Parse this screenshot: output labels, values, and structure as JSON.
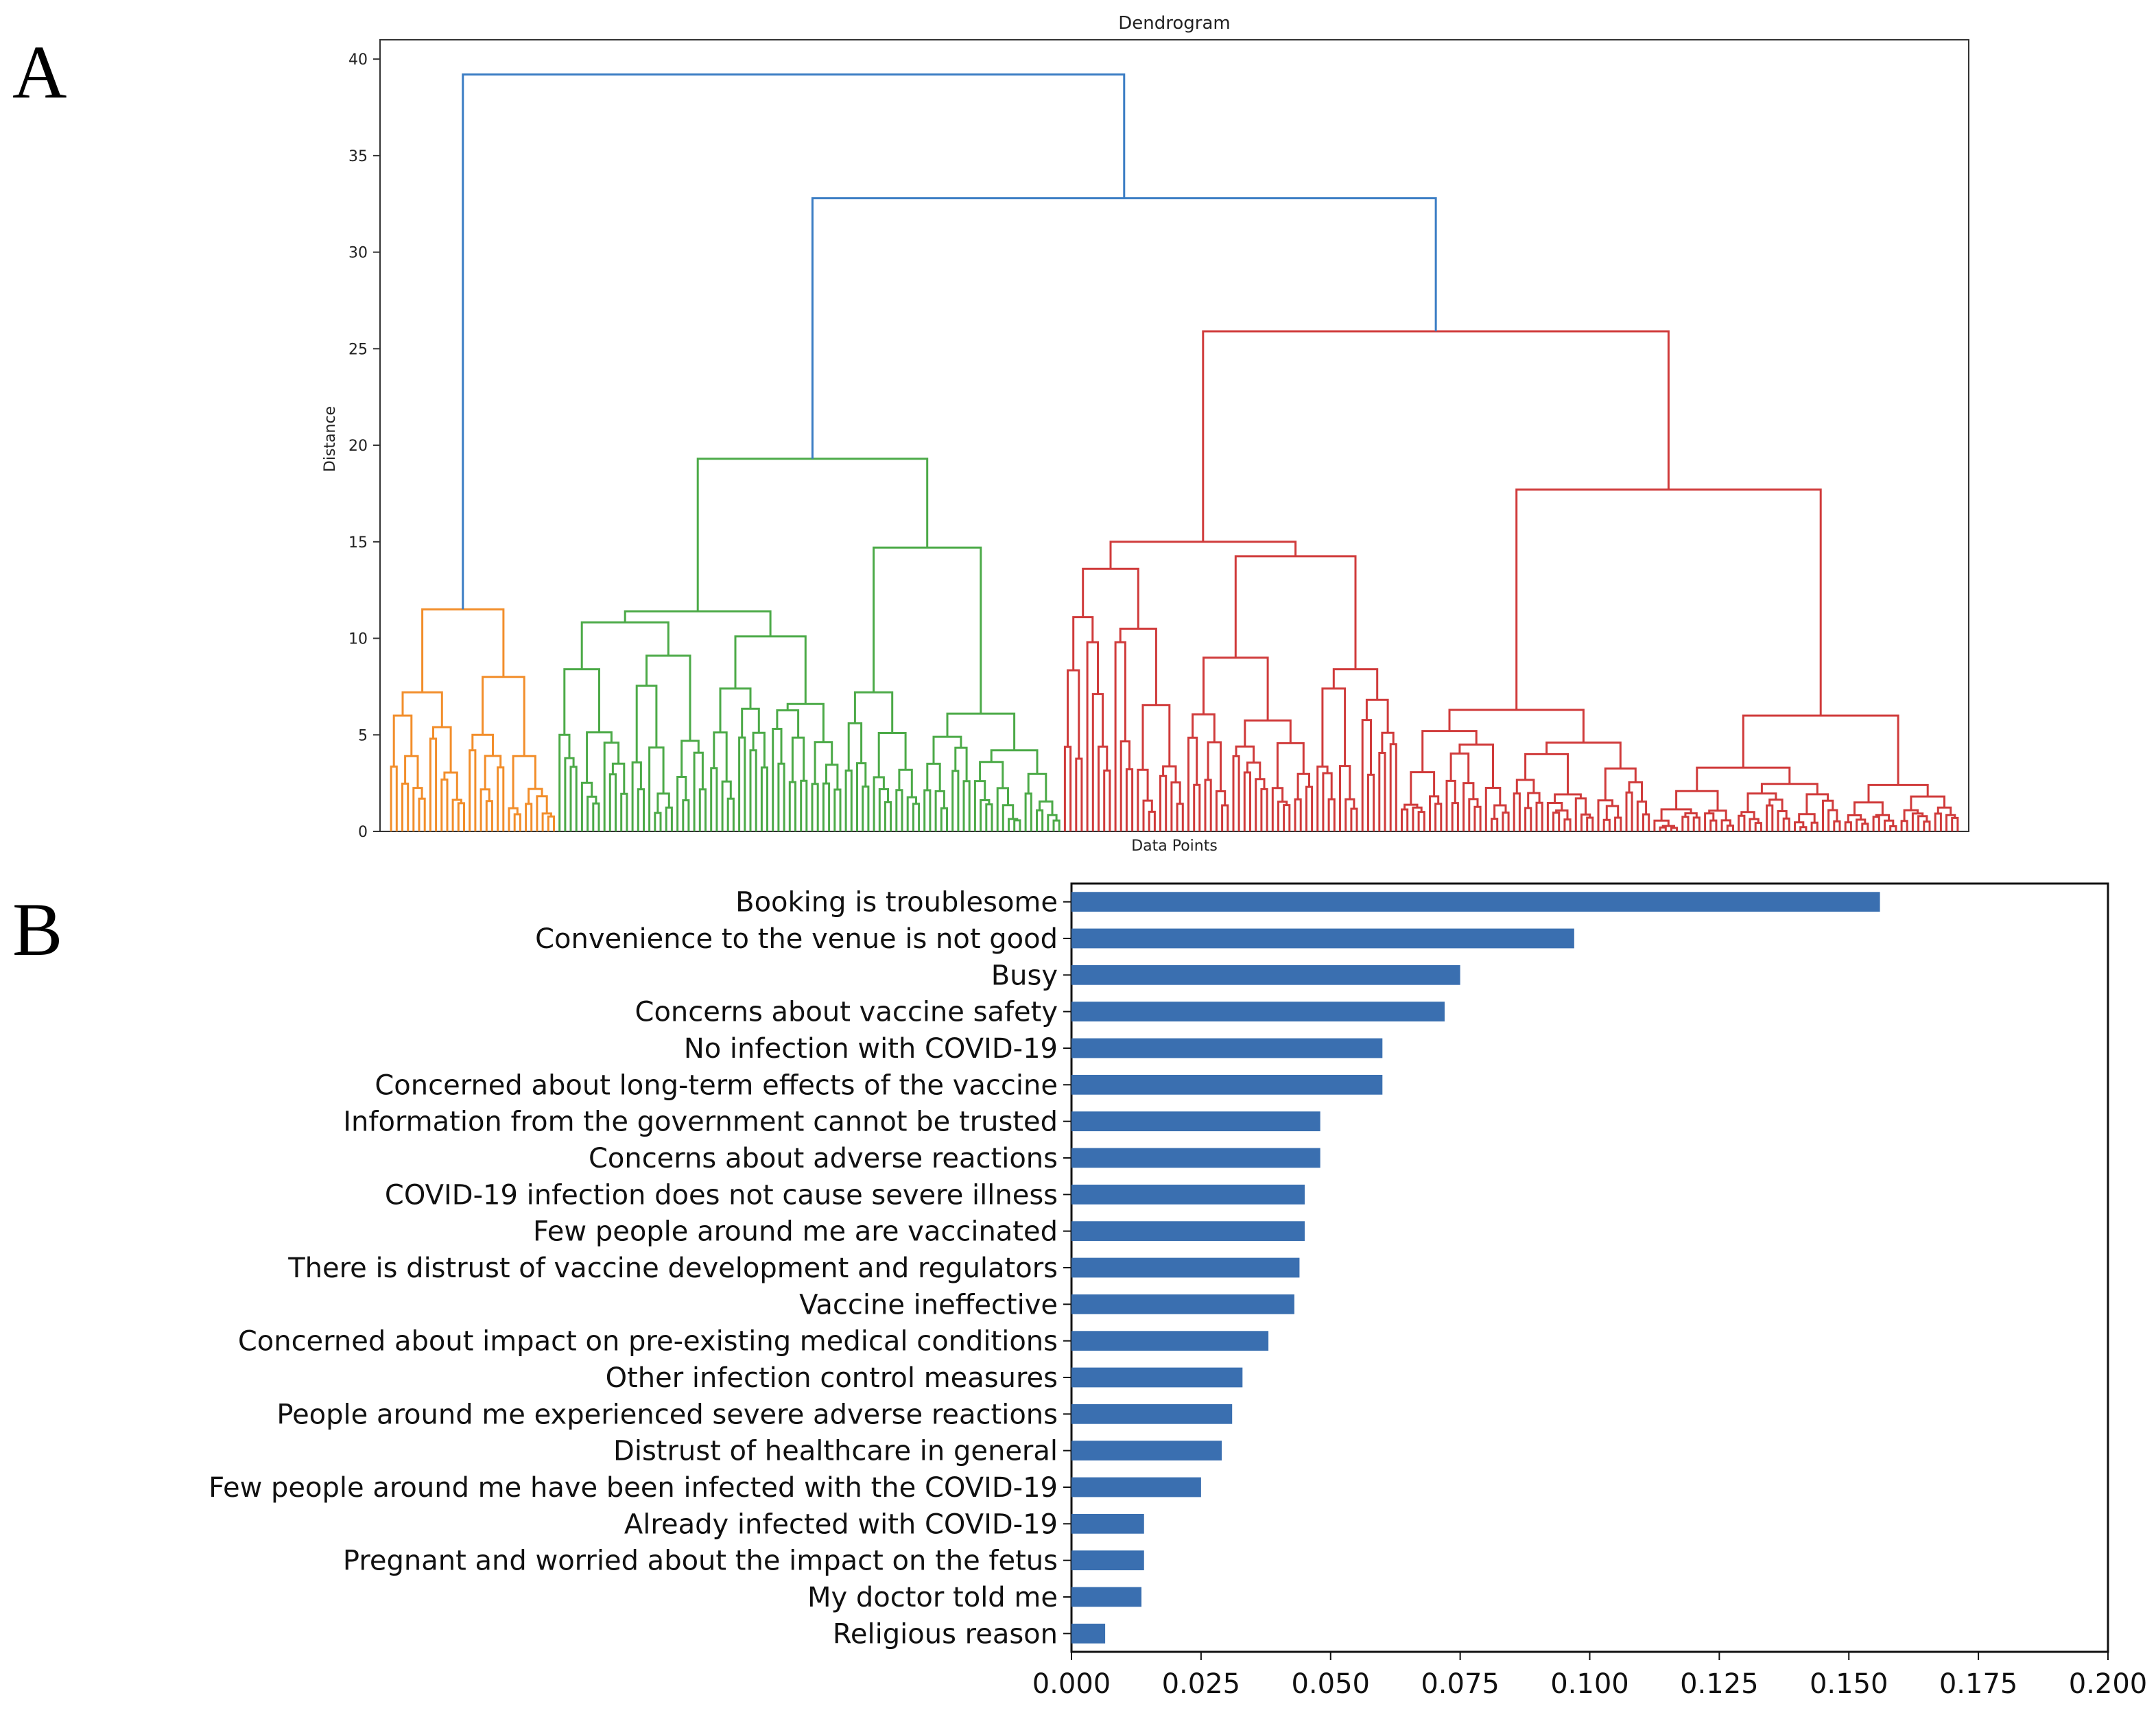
{
  "panels": {
    "a": "A",
    "b": "B"
  },
  "chart_data": [
    {
      "type": "dendrogram",
      "title": "Dendrogram",
      "xlabel": "Data Points",
      "ylabel": "Distance",
      "ylim": [
        0,
        41
      ],
      "yticks": [
        0,
        5,
        10,
        15,
        20,
        25,
        30,
        35,
        40
      ],
      "colors": {
        "orange": "#f28e2b",
        "green": "#4caa48",
        "red": "#d03b3b",
        "blue": "#3b7dc4"
      },
      "clusters": [
        {
          "name": "orange",
          "leaves": 30,
          "height": 11.5,
          "sub_heights": [
            7.2,
            8.0,
            6.0,
            5.4,
            4.8,
            5.0,
            3.9,
            4.2,
            1.2
          ]
        },
        {
          "name": "green",
          "leaves": 90,
          "height": 19.3,
          "sub_heights": [
            11.4,
            14.7,
            11.7,
            10.1,
            8.4,
            9.1,
            7.4,
            6.6,
            6.3,
            7.2,
            6.1,
            5.6,
            5.1,
            4.9,
            4.2,
            3.6
          ]
        },
        {
          "name": "red",
          "leaves": 160,
          "height": 25.9,
          "sub_heights": [
            15.0,
            17.7,
            13.6,
            14.3,
            11.1,
            10.5,
            9.8,
            9.0,
            8.4,
            7.4,
            6.3,
            6.0,
            5.2,
            4.6,
            4.0,
            3.3,
            2.4,
            1.5
          ]
        }
      ],
      "links": [
        {
          "left": "green",
          "right": "red",
          "height": 32.8
        },
        {
          "left": "orange",
          "right": "green+red",
          "height": 39.2
        }
      ]
    },
    {
      "type": "bar",
      "orientation": "horizontal",
      "color": "#3a6fb0",
      "xlim": [
        0,
        0.2
      ],
      "xticks": [
        "0.000",
        "0.025",
        "0.050",
        "0.075",
        "0.100",
        "0.125",
        "0.150",
        "0.175",
        "0.200"
      ],
      "categories": [
        "Booking is troublesome",
        "Convenience to the venue is not good",
        "Busy",
        "Concerns about vaccine safety",
        "No infection with COVID-19",
        "Concerned about long-term effects of the vaccine",
        "Information from the government cannot be trusted",
        "Concerns about adverse reactions",
        "COVID-19 infection does not cause severe illness",
        "Few people around me are vaccinated",
        "There is distrust of vaccine development and regulators",
        "Vaccine ineffective",
        "Concerned about impact on pre-existing medical conditions",
        "Other infection control measures",
        "People around me experienced severe adverse reactions",
        "Distrust of healthcare in general",
        "Few people around me have been infected with the COVID-19",
        "Already infected with COVID-19",
        "Pregnant and worried about the impact on the fetus",
        "My doctor told me",
        "Religious reason"
      ],
      "values": [
        0.156,
        0.097,
        0.075,
        0.072,
        0.06,
        0.06,
        0.048,
        0.048,
        0.045,
        0.045,
        0.044,
        0.043,
        0.038,
        0.033,
        0.031,
        0.029,
        0.025,
        0.014,
        0.014,
        0.0135,
        0.0065
      ]
    }
  ]
}
